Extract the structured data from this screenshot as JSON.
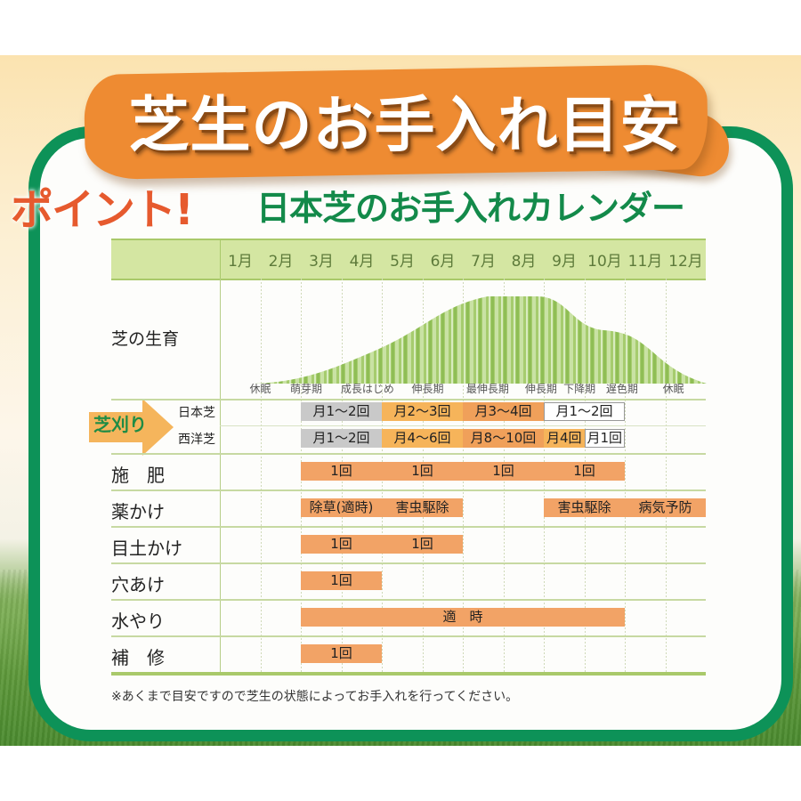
{
  "title": "芝生のお手入れ目安",
  "point_label": "ポイント!",
  "subtitle": "日本芝のお手入れカレンダー",
  "colors": {
    "frame_green": "#0d9258",
    "title_orange": "#ee8b32",
    "point_red": "#e65a2e",
    "subtitle_green": "#138a4a",
    "header_green": "#d4e6a2",
    "bar_orange": "#f2a366",
    "bar_light_orange": "#f6b45a",
    "bar_gray": "#c9c9c9"
  },
  "months": [
    "1月",
    "2月",
    "3月",
    "4月",
    "5月",
    "6月",
    "7月",
    "8月",
    "9月",
    "10月",
    "11月",
    "12月"
  ],
  "growth": {
    "label": "芝の生育",
    "stages": [
      {
        "label": "休眠",
        "month_pos": 1.0
      },
      {
        "label": "萌芽期",
        "month_pos": 2.0
      },
      {
        "label": "成長はじめ",
        "month_pos": 3.25
      },
      {
        "label": "伸長期",
        "month_pos": 5.0
      },
      {
        "label": "最伸長期",
        "month_pos": 6.35
      },
      {
        "label": "伸長期",
        "month_pos": 7.8
      },
      {
        "label": "下降期",
        "month_pos": 8.75
      },
      {
        "label": "遅色期",
        "month_pos": 9.8
      },
      {
        "label": "休眠",
        "month_pos": 11.2
      }
    ]
  },
  "mowing": {
    "label": "芝刈り",
    "rows": [
      {
        "label": "日本芝",
        "bars": [
          {
            "start": 2,
            "span": 2,
            "text": "月1～2回",
            "style": "gray"
          },
          {
            "start": 4,
            "span": 2,
            "text": "月2～3回",
            "style": "lo"
          },
          {
            "start": 6,
            "span": 2,
            "text": "月3～4回",
            "style": "mid"
          },
          {
            "start": 8,
            "span": 2,
            "text": "月1～2回",
            "style": "white"
          }
        ]
      },
      {
        "label": "西洋芝",
        "bars": [
          {
            "start": 2,
            "span": 2,
            "text": "月1～2回",
            "style": "gray"
          },
          {
            "start": 4,
            "span": 2,
            "text": "月4～6回",
            "style": "lo"
          },
          {
            "start": 6,
            "span": 2,
            "text": "月8～10回",
            "style": "mid"
          },
          {
            "start": 8,
            "span": 1,
            "text": "月4回",
            "style": "lo"
          },
          {
            "start": 9,
            "span": 1,
            "text": "月1回",
            "style": "white"
          }
        ]
      }
    ]
  },
  "tasks": [
    {
      "label": "施　肥",
      "bars": [
        {
          "start": 2,
          "span": 2,
          "text": "1回"
        },
        {
          "start": 4,
          "span": 2,
          "text": "1回"
        },
        {
          "start": 6,
          "span": 2,
          "text": "1回"
        },
        {
          "start": 8,
          "span": 2,
          "text": "1回"
        }
      ]
    },
    {
      "label": "薬かけ",
      "bars": [
        {
          "start": 2,
          "span": 2,
          "text": "除草(適時)"
        },
        {
          "start": 4,
          "span": 2,
          "text": "害虫駆除"
        },
        {
          "start": 8,
          "span": 2,
          "text": "害虫駆除"
        },
        {
          "start": 10,
          "span": 2,
          "text": "病気予防"
        }
      ]
    },
    {
      "label": "目土かけ",
      "bars": [
        {
          "start": 2,
          "span": 2,
          "text": "1回"
        },
        {
          "start": 4,
          "span": 2,
          "text": "1回"
        }
      ]
    },
    {
      "label": "穴あけ",
      "bars": [
        {
          "start": 2,
          "span": 2,
          "text": "1回"
        }
      ]
    },
    {
      "label": "水やり",
      "bars": [
        {
          "start": 2,
          "span": 8,
          "text": "適　時"
        }
      ]
    },
    {
      "label": "補　修",
      "bars": [
        {
          "start": 2,
          "span": 2,
          "text": "1回"
        }
      ]
    }
  ],
  "note": "※あくまで目安ですので芝生の状態によってお手入れを行ってください。"
}
